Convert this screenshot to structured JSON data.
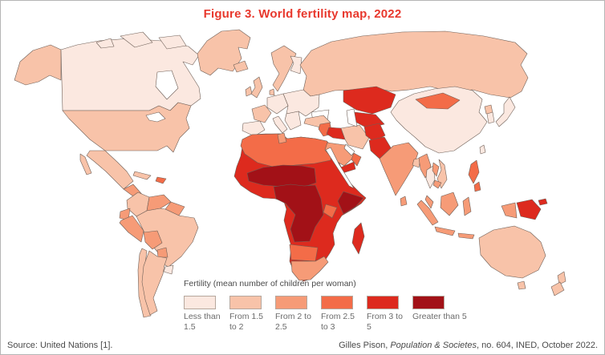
{
  "figure": {
    "title": "Figure 3. World fertility map, 2022",
    "title_color": "#e8382d",
    "source": "Source: United Nations [1].",
    "credit_prefix": "Gilles Pison, ",
    "credit_italic": "Population & Societes",
    "credit_suffix": ", no. 604, INED, October 2022."
  },
  "legend": {
    "title": "Fertility (mean number of children per woman)"
  },
  "chart_data": {
    "type": "choropleth",
    "title": "Figure 3. World fertility map, 2022",
    "metric": "Fertility (mean number of children per woman)",
    "year": 2022,
    "legend_position": "bottom-center",
    "classes": [
      {
        "id": "lt15",
        "label": "Less than 1.5",
        "color": "#fbe8e0"
      },
      {
        "id": "f15_2",
        "label": "From 1.5 to 2",
        "color": "#f8c3a9"
      },
      {
        "id": "f2_25",
        "label": "From 2 to 2.5",
        "color": "#f69b77"
      },
      {
        "id": "f25_3",
        "label": "From 2.5 to 3",
        "color": "#f36c48"
      },
      {
        "id": "f3_5",
        "label": "From 3 to 5",
        "color": "#dd2a1e"
      },
      {
        "id": "gt5",
        "label": "Greater than 5",
        "color": "#a21117"
      }
    ],
    "regions": {
      "usa": "f15_2",
      "canada": "lt15",
      "greenland": "f15_2",
      "iceland": "f15_2",
      "mexico": "f15_2",
      "central-america": "f2_25",
      "cuba": "f15_2",
      "hispaniola": "f25_3",
      "colombia": "f15_2",
      "venezuela": "f2_25",
      "guianas": "f2_25",
      "ecuador": "f2_25",
      "peru": "f2_25",
      "brazil": "f15_2",
      "bolivia": "f2_25",
      "paraguay": "f2_25",
      "uruguay": "lt15",
      "argentina": "f15_2",
      "chile": "f15_2",
      "uk": "f15_2",
      "ireland": "f15_2",
      "norway-sweden": "f15_2",
      "finland": "lt15",
      "denmark": "f15_2",
      "central-europe": "lt15",
      "eastern-europe": "lt15",
      "france": "f15_2",
      "iberia": "lt15",
      "italy": "lt15",
      "balkans": "lt15",
      "russia": "f15_2",
      "turkey": "f15_2",
      "africa-base": "f3_5",
      "north-africa": "f25_3",
      "tunisia": "f2_25",
      "sahel": "gt5",
      "central-africa": "gt5",
      "somalia": "gt5",
      "kenya": "f25_3",
      "namibia-botswana": "f25_3",
      "south-africa": "f2_25",
      "madagascar": "f3_5",
      "syria-jordan": "f25_3",
      "iraq": "f3_5",
      "saudi-arabia": "f2_25",
      "yemen": "f3_5",
      "oman": "f25_3",
      "iran": "f15_2",
      "afghanistan": "f3_5",
      "pakistan": "f3_5",
      "kazakhstan": "f3_5",
      "central-asia": "f3_5",
      "india": "f2_25",
      "bangladesh": "f15_2",
      "sri-lanka": "f2_25",
      "china": "lt15",
      "mongolia": "f25_3",
      "japan": "lt15",
      "south-korea": "lt15",
      "north-korea": "f15_2",
      "taiwan": "lt15",
      "myanmar": "f2_25",
      "thailand": "lt15",
      "laos": "f2_25",
      "vietnam": "f15_2",
      "cambodia": "f2_25",
      "malaysia": "f2_25",
      "philippines": "f25_3",
      "indonesia": "f2_25",
      "west-papua": "f2_25",
      "papua-new-guinea": "f3_5",
      "australia": "f15_2",
      "new-zealand": "f15_2"
    }
  }
}
